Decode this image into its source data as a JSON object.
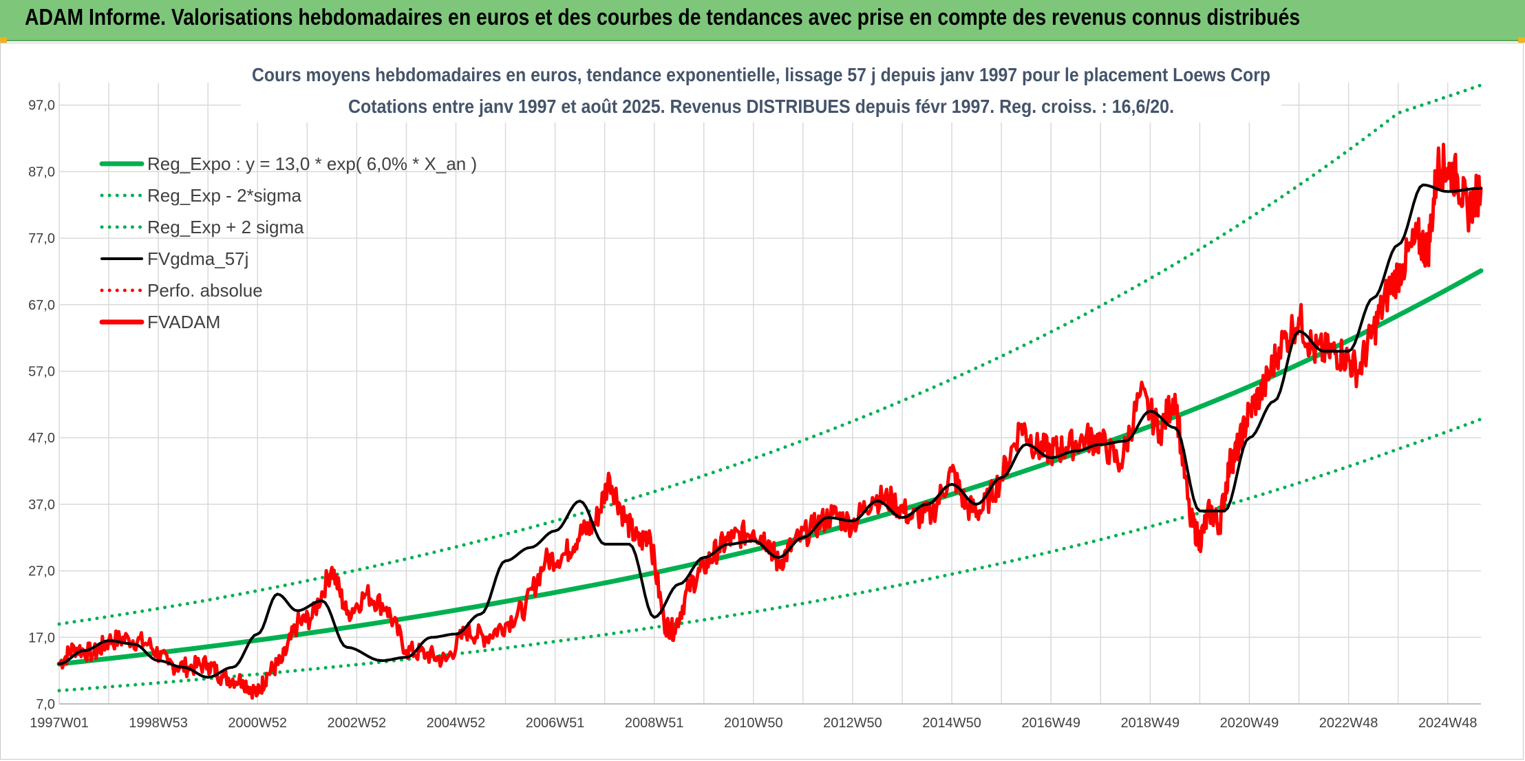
{
  "header": {
    "title": "ADAM Informe. Valorisations hebdomadaires en euros et des courbes de tendances avec prise en compte des revenus connus distribués"
  },
  "colors": {
    "banner": "#7dc67a",
    "reg_expo": "#00b050",
    "fvgdma": "#000000",
    "fvadam": "#ff0000",
    "grid": "#d9d9d9"
  },
  "chart_data": {
    "type": "line",
    "title_line1": "Cours moyens hebdomadaires en euros, tendance exponentielle, lissage 57 j depuis janv 1997 pour le placement Loews Corp",
    "title_line2": "Cotations entre janv 1997 et août 2025. Revenus DISTRIBUES depuis févr 1997. Reg. croiss. : 16,6/20.",
    "ylim": [
      7,
      100
    ],
    "y_ticks": [
      "7,0",
      "17,0",
      "27,0",
      "37,0",
      "47,0",
      "57,0",
      "67,0",
      "77,0",
      "87,0",
      "97,0"
    ],
    "x_labels": [
      "1997W01",
      "1998W53",
      "2000W52",
      "2002W52",
      "2004W52",
      "2006W51",
      "2008W51",
      "2010W50",
      "2012W50",
      "2014W50",
      "2016W49",
      "2018W49",
      "2020W49",
      "2022W48",
      "2024W48"
    ],
    "x_label_years": [
      1997.0,
      1999.0,
      2001.0,
      2003.0,
      2005.0,
      2007.0,
      2009.0,
      2011.0,
      2013.0,
      2015.0,
      2017.0,
      2019.0,
      2021.0,
      2023.0,
      2025.0
    ],
    "x_range_years": [
      1997.0,
      2025.67
    ],
    "legend": [
      {
        "label": "Reg_Expo : y = 13,0 * exp( 6,0% *  X_an )",
        "style": "solid-thick",
        "color": "#00b050"
      },
      {
        "label": "Reg_Exp - 2*sigma",
        "style": "dotted",
        "color": "#00b050"
      },
      {
        "label": "Reg_Exp + 2 sigma",
        "style": "dotted",
        "color": "#00b050"
      },
      {
        "label": "FVgdma_57j",
        "style": "solid",
        "color": "#000000"
      },
      {
        "label": "Perfo. absolue",
        "style": "dotted",
        "color": "#ff0000"
      },
      {
        "label": "FVADAM",
        "style": "solid-thick",
        "color": "#ff0000"
      }
    ],
    "series": [
      {
        "name": "Reg_Expo : y = 13,0 * exp( 6,0% *  X_an )",
        "x": [
          1997,
          2000,
          2003,
          2006,
          2009,
          2012,
          2015,
          2018,
          2021,
          2024,
          2025.67
        ],
        "y": [
          13.0,
          15.6,
          18.7,
          22.4,
          26.7,
          32.0,
          38.5,
          46.0,
          54.7,
          65.4,
          72.1
        ]
      },
      {
        "name": "Reg_Exp - 2*sigma",
        "x": [
          1997,
          2000,
          2003,
          2006,
          2009,
          2012,
          2015,
          2018,
          2021,
          2024,
          2025.67
        ],
        "y": [
          9.0,
          10.8,
          12.9,
          15.4,
          18.5,
          22.1,
          26.5,
          31.7,
          37.9,
          45.3,
          49.8
        ]
      },
      {
        "name": "Reg_Exp + 2 sigma",
        "x": [
          1997,
          2000,
          2003,
          2006,
          2009,
          2012,
          2015,
          2018,
          2021,
          2024,
          2025.67
        ],
        "y": [
          19.0,
          22.6,
          27.1,
          32.5,
          38.9,
          46.6,
          55.8,
          66.8,
          80.0,
          95.8,
          100.0
        ]
      },
      {
        "name": "FVgdma_57j",
        "x": [
          1997.0,
          1997.5,
          1998.0,
          1998.5,
          1999.0,
          1999.5,
          2000.0,
          2000.5,
          2001.0,
          2001.4,
          2001.8,
          2002.3,
          2002.8,
          2003.5,
          2004.0,
          2004.5,
          2005.0,
          2005.5,
          2006.0,
          2006.5,
          2007.0,
          2007.5,
          2008.0,
          2008.5,
          2009.0,
          2009.5,
          2010.0,
          2010.5,
          2011.0,
          2011.5,
          2012.0,
          2012.5,
          2013.0,
          2013.5,
          2014.0,
          2014.5,
          2015.0,
          2015.5,
          2016.0,
          2016.5,
          2017.0,
          2017.5,
          2018.0,
          2018.5,
          2019.0,
          2019.5,
          2020.0,
          2020.5,
          2021.0,
          2021.5,
          2022.0,
          2022.5,
          2023.0,
          2023.5,
          2024.0,
          2024.5,
          2025.0,
          2025.67
        ],
        "y": [
          13.0,
          15.0,
          16.5,
          16.0,
          13.5,
          12.5,
          11.0,
          12.5,
          17.5,
          23.5,
          21.0,
          22.5,
          15.5,
          13.5,
          14.0,
          17.0,
          17.5,
          20.5,
          28.5,
          30.5,
          33.0,
          37.5,
          31.0,
          31.0,
          20.0,
          25.0,
          29.0,
          31.0,
          31.5,
          29.0,
          32.0,
          35.0,
          34.5,
          37.5,
          35.0,
          37.0,
          40.0,
          37.0,
          41.0,
          46.0,
          44.0,
          45.0,
          46.0,
          46.5,
          51.0,
          48.5,
          36.0,
          36.0,
          47.0,
          52.5,
          63.0,
          60.0,
          60.0,
          68.0,
          76.0,
          85.0,
          84.0,
          84.5
        ]
      },
      {
        "name": "FVADAM",
        "x": [
          1997.0,
          1997.3,
          1997.7,
          1998.0,
          1998.4,
          1998.8,
          1999.2,
          1999.6,
          2000.0,
          2000.3,
          2000.7,
          2001.0,
          2001.2,
          2001.5,
          2001.8,
          2002.1,
          2002.5,
          2002.8,
          2003.2,
          2003.6,
          2004.0,
          2004.4,
          2004.8,
          2005.2,
          2005.6,
          2006.0,
          2006.4,
          2006.8,
          2007.2,
          2007.5,
          2007.8,
          2008.1,
          2008.4,
          2008.7,
          2008.9,
          2009.2,
          2009.4,
          2009.7,
          2010.0,
          2010.3,
          2010.6,
          2011.0,
          2011.3,
          2011.5,
          2011.8,
          2012.2,
          2012.6,
          2013.0,
          2013.4,
          2013.8,
          2014.2,
          2014.6,
          2015.0,
          2015.3,
          2015.6,
          2016.0,
          2016.4,
          2016.7,
          2017.0,
          2017.3,
          2017.7,
          2018.0,
          2018.4,
          2018.8,
          2019.2,
          2019.5,
          2019.8,
          2020.0,
          2020.2,
          2020.4,
          2020.6,
          2020.8,
          2021.0,
          2021.3,
          2021.6,
          2022.0,
          2022.3,
          2022.6,
          2022.9,
          2023.2,
          2023.5,
          2023.8,
          2024.1,
          2024.4,
          2024.6,
          2024.8,
          2025.0,
          2025.2,
          2025.4,
          2025.67
        ],
        "y": [
          13.0,
          15.5,
          14.5,
          16.5,
          16.8,
          16.0,
          13.0,
          12.5,
          13.0,
          11.0,
          10.5,
          8.5,
          11.5,
          13.5,
          19.0,
          20.0,
          27.5,
          20.5,
          23.5,
          21.5,
          15.0,
          14.5,
          13.5,
          18.0,
          17.0,
          19.0,
          21.5,
          28.5,
          29.5,
          32.5,
          34.0,
          41.0,
          35.0,
          31.0,
          33.0,
          19.0,
          18.0,
          24.5,
          27.5,
          30.5,
          32.0,
          33.0,
          31.5,
          28.0,
          31.0,
          33.5,
          35.5,
          34.0,
          38.0,
          37.5,
          35.0,
          35.5,
          42.0,
          36.5,
          36.0,
          41.0,
          49.0,
          45.5,
          45.0,
          45.5,
          47.0,
          46.5,
          43.0,
          53.5,
          48.0,
          53.5,
          35.0,
          31.5,
          36.0,
          34.0,
          43.0,
          46.0,
          51.0,
          54.5,
          60.5,
          65.0,
          60.0,
          60.0,
          59.5,
          57.0,
          63.0,
          69.0,
          73.0,
          77.0,
          75.0,
          88.0,
          87.5,
          86.0,
          81.0,
          84.5
        ]
      }
    ]
  }
}
